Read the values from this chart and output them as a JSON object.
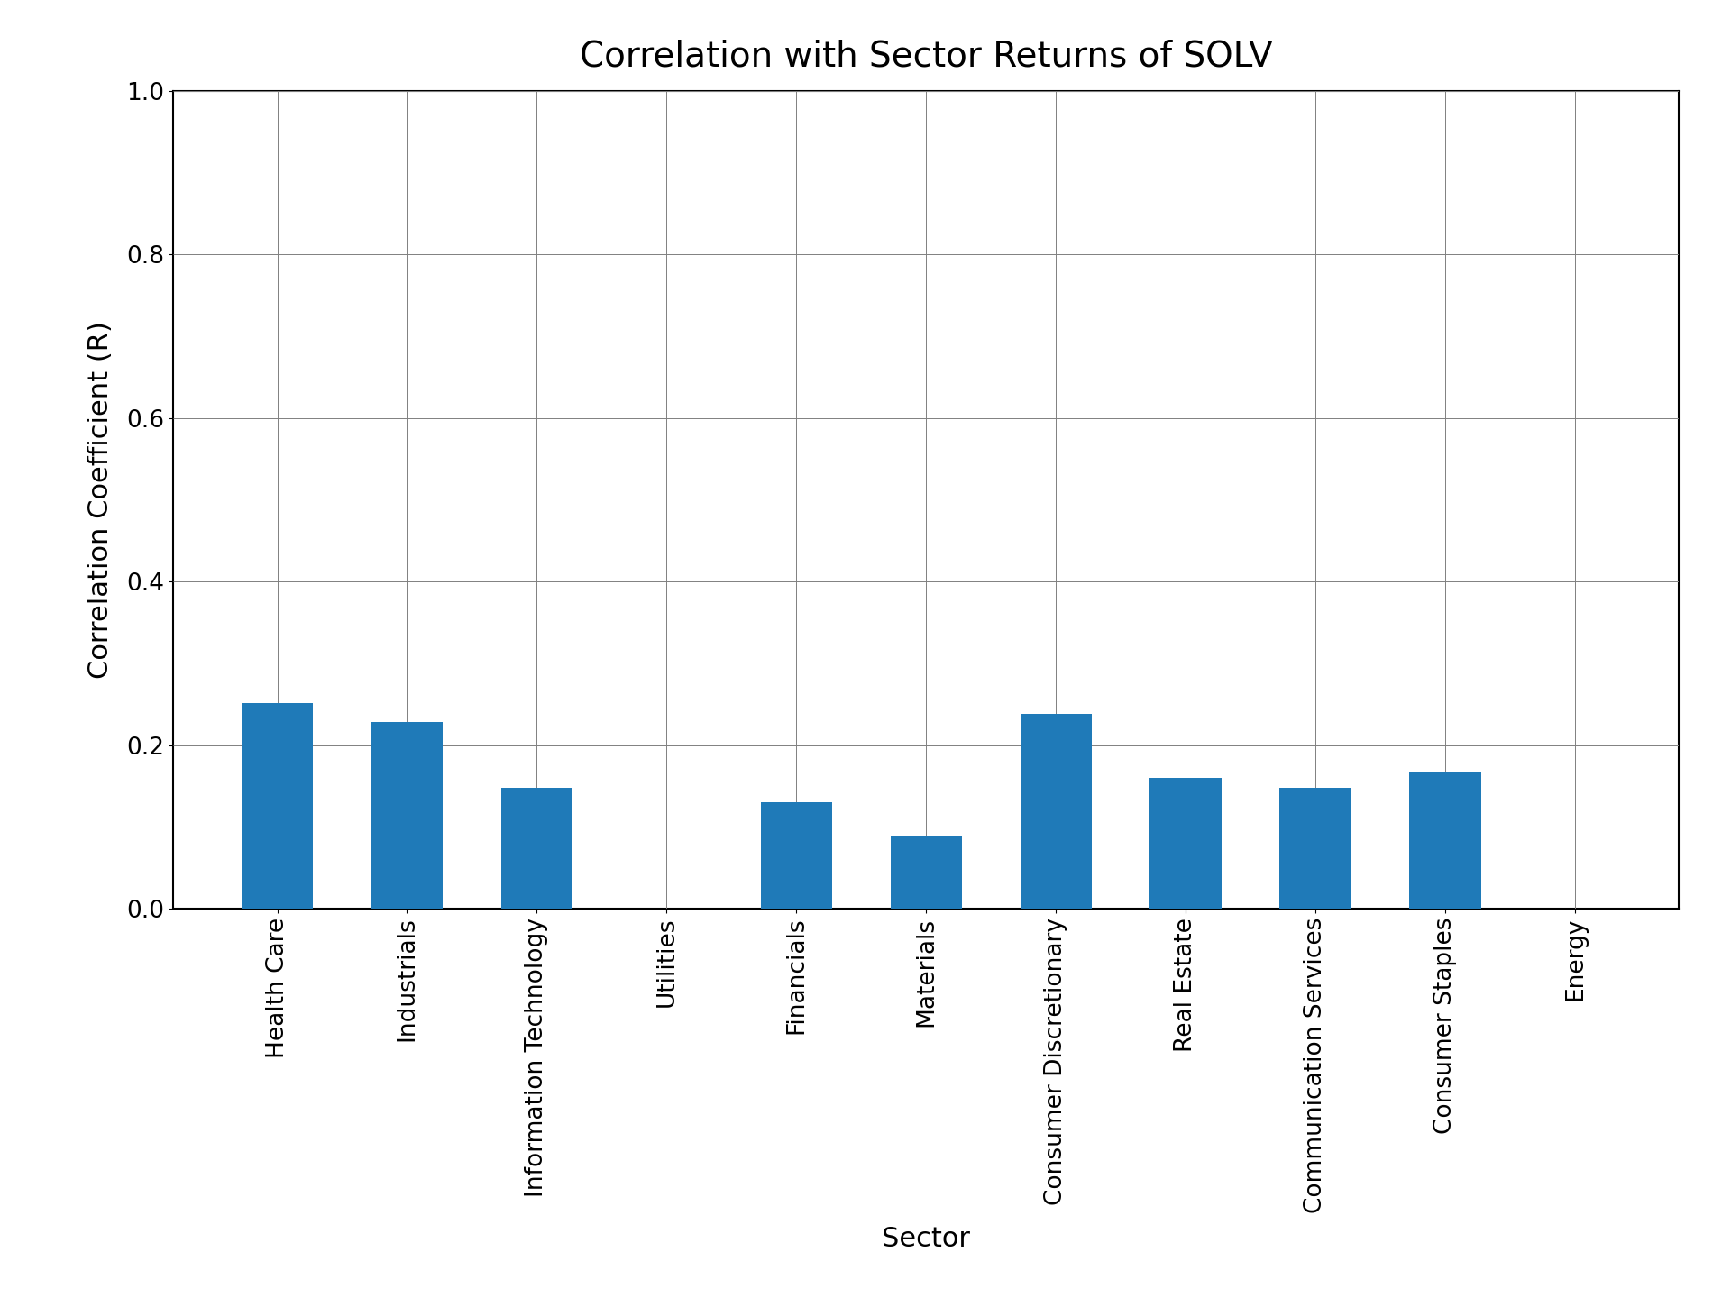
{
  "title": "Correlation with Sector Returns of SOLV",
  "xlabel": "Sector",
  "ylabel": "Correlation Coefficient (R)",
  "categories": [
    "Health Care",
    "Industrials",
    "Information Technology",
    "Utilities",
    "Financials",
    "Materials",
    "Consumer Discretionary",
    "Real Estate",
    "Communication Services",
    "Consumer Staples",
    "Energy"
  ],
  "values": [
    0.251,
    0.228,
    0.148,
    0.0,
    0.13,
    0.089,
    0.238,
    0.16,
    0.148,
    0.168,
    0.0
  ],
  "bar_color": "#1f7ab8",
  "ylim": [
    0.0,
    1.0
  ],
  "yticks": [
    0.0,
    0.2,
    0.4,
    0.6,
    0.8,
    1.0
  ],
  "title_fontsize": 28,
  "label_fontsize": 22,
  "tick_fontsize": 19,
  "background_color": "#ffffff",
  "grid": true,
  "bar_width": 0.55
}
